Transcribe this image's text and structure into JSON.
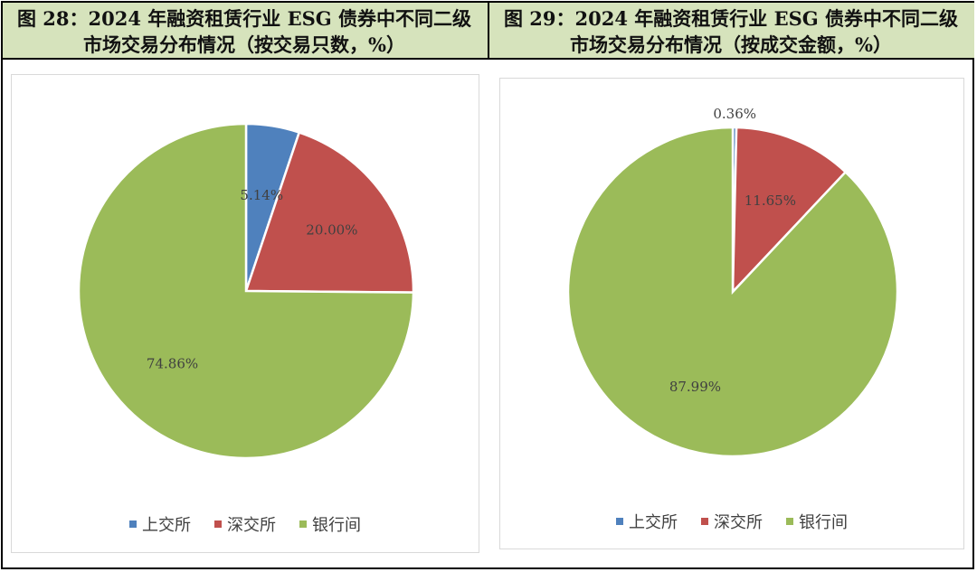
{
  "titles": {
    "left": {
      "line1": "图 28：2024 年融资租赁行业 ESG 债券中不同二级",
      "line2": "市场交易分布情况（按交易只数，%）"
    },
    "right": {
      "line1": "图 29：2024 年融资租赁行业 ESG 债券中不同二级",
      "line2": "市场交易分布情况（按成交金额，%）"
    }
  },
  "colors": {
    "header_bg": "#d6e3bc",
    "上交所": "#4f81bd",
    "深交所": "#c0504d",
    "银行间": "#9bbb59"
  },
  "chart_data": [
    {
      "type": "pie",
      "categories": [
        "上交所",
        "深交所",
        "银行间"
      ],
      "values": [
        5.14,
        20.0,
        74.86
      ],
      "labels": [
        "5.14%",
        "20.00%",
        "74.86%"
      ],
      "legend": [
        "上交所",
        "深交所",
        "银行间"
      ],
      "legend_position": "bottom"
    },
    {
      "type": "pie",
      "categories": [
        "上交所",
        "深交所",
        "银行间"
      ],
      "values": [
        0.36,
        11.65,
        87.99
      ],
      "labels": [
        "0.36%",
        "11.65%",
        "87.99%"
      ],
      "legend": [
        "上交所",
        "深交所",
        "银行间"
      ],
      "legend_position": "bottom"
    }
  ]
}
